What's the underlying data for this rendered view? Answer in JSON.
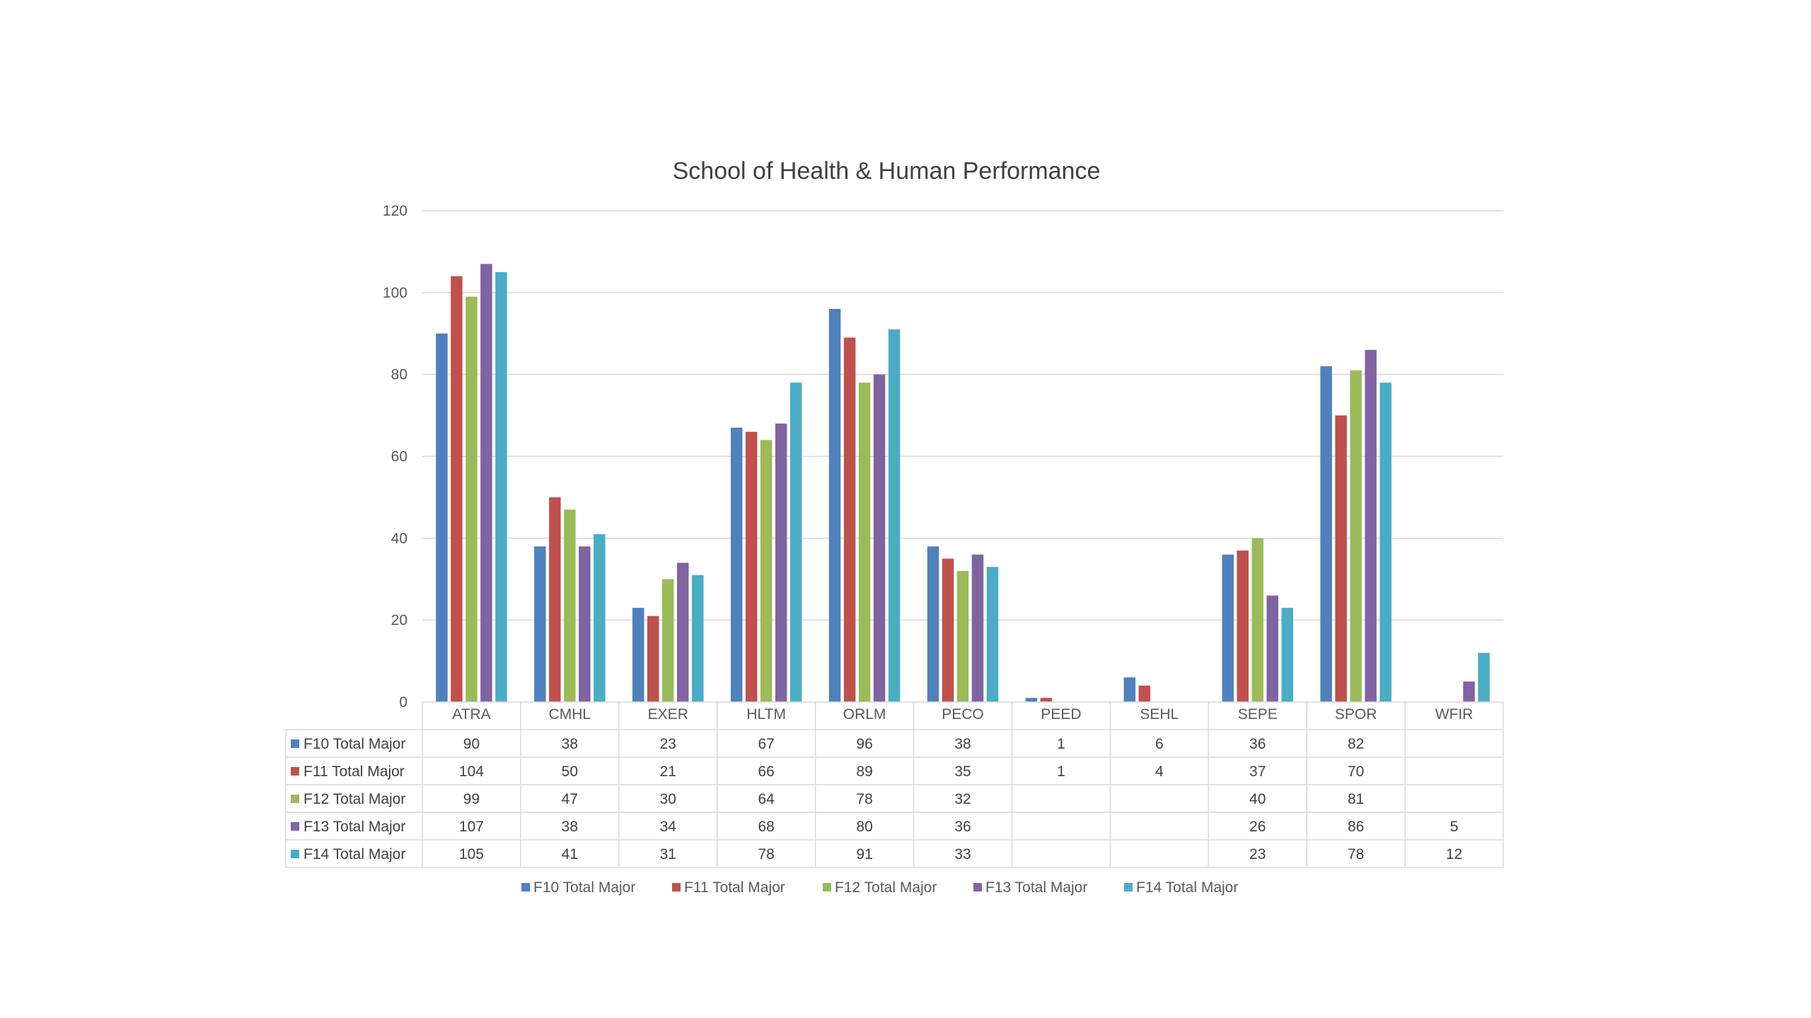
{
  "chart_data": {
    "type": "bar",
    "title": "School of Health & Human Performance",
    "categories": [
      "ATRA",
      "CMHL",
      "EXER",
      "HLTM",
      "ORLM",
      "PECO",
      "PEED",
      "SEHL",
      "SEPE",
      "SPOR",
      "WFIR"
    ],
    "ylim": [
      0,
      120
    ],
    "yticks": [
      "0",
      "20",
      "40",
      "60",
      "80",
      "100",
      "120"
    ],
    "grid": true,
    "legend_position": "bottom",
    "data_table": true,
    "series": [
      {
        "name": "F10 Total Major",
        "color": "#4f81bd",
        "values": [
          90,
          38,
          23,
          67,
          96,
          38,
          1,
          6,
          36,
          82,
          null
        ]
      },
      {
        "name": "F11 Total Major",
        "color": "#c0504d",
        "values": [
          104,
          50,
          21,
          66,
          89,
          35,
          1,
          4,
          37,
          70,
          null
        ]
      },
      {
        "name": "F12 Total Major",
        "color": "#9bbb59",
        "values": [
          99,
          47,
          30,
          64,
          78,
          32,
          null,
          null,
          40,
          81,
          null
        ]
      },
      {
        "name": "F13 Total Major",
        "color": "#8064a2",
        "values": [
          107,
          38,
          34,
          68,
          80,
          36,
          null,
          null,
          26,
          86,
          5
        ]
      },
      {
        "name": "F14 Total Major",
        "color": "#4bacc6",
        "values": [
          105,
          41,
          31,
          78,
          91,
          33,
          null,
          null,
          23,
          78,
          12
        ]
      }
    ]
  }
}
